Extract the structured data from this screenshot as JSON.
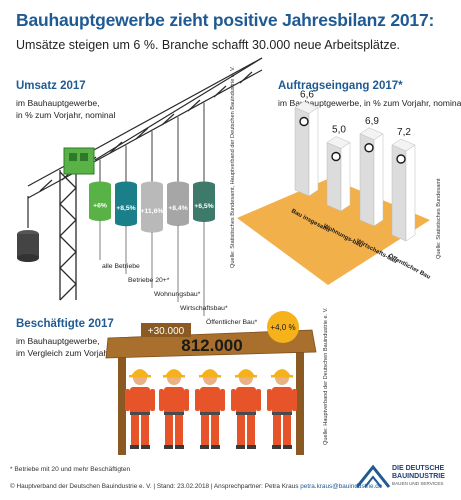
{
  "title": "Bauhauptgewerbe zieht positive Jahresbilanz 2017:",
  "subtitle": "Umsätze steigen um 6 %. Branche schafft 30.000 neue Arbeitsplätze.",
  "umsatz": {
    "heading": "Umsatz 2017",
    "sub1": "im Bauhauptgewerbe,",
    "sub2": "in % zum Vorjahr, nominal",
    "source": "Quelle: Statistisches Bundesamt, Hauptverband der Deutschen Bauindustrie e. V."
  },
  "auftrag": {
    "heading": "Auftragseingang 2017*",
    "sub": "im Bauhauptgewerbe, in % zum Vorjahr, nominal",
    "source": "Quelle: Statistisches Bundesamt"
  },
  "beschaeftigte": {
    "heading": "Beschäftigte 2017",
    "sub1": "im Bauhauptgewerbe,",
    "sub2": "im Vergleich zum Vorjahr",
    "total": "812.000",
    "change_abs": "+30.000",
    "change_pct": "+4,0 %",
    "source": "Quelle: Hauptverband der Deutschen Bauindustrie e. V."
  },
  "footnote": "* Betriebe mit 20 und mehr Beschäftigten",
  "footer": {
    "text": "© Hauptverband der Deutschen Bauindustrie e. V. | Stand: 23.02.2018 | Ansprechpartner: Petra Kraus",
    "email": "petra.kraus@bauindustrie.de"
  },
  "logo": {
    "line1": "DIE DEUTSCHE",
    "line2": "BAUINDUSTRIE",
    "line3": "BAUEN UND SERVICES"
  },
  "colors": {
    "brand_blue": "#1f5a93",
    "crane_green": "#58b246",
    "beam_brown": "#a8702c",
    "pillar_orange": "#f2b04b",
    "worker_orange": "#e8542a",
    "helmet_yellow": "#f6b21a"
  },
  "chart_data": [
    {
      "type": "bar",
      "title": "Umsatz 2017",
      "categories": [
        "alle Betriebe",
        "Betriebe 20+*",
        "Wohnungsbau*",
        "Wirtschaftsbau*",
        "Öffentlicher Bau*"
      ],
      "values": [
        6.0,
        8.5,
        11.6,
        8.4,
        6.5
      ],
      "labels": [
        "+6%",
        "+8,5%",
        "+11,6%",
        "+8,4%",
        "+6,5%"
      ],
      "colors": [
        "#58b246",
        "#1b7f8a",
        "#b9b9b9",
        "#a6a6a6",
        "#3d7a6a"
      ],
      "unit": "% zum Vorjahr"
    },
    {
      "type": "bar",
      "title": "Auftragseingang 2017*",
      "categories": [
        "Bau insgesamt",
        "Wohnungs-bau",
        "Wirtschafts-bau",
        "Öffentlicher Bau"
      ],
      "values": [
        6.6,
        5.0,
        6.9,
        7.2
      ],
      "labels": [
        "6,6",
        "5,0",
        "6,9",
        "7,2"
      ],
      "unit": "% zum Vorjahr"
    }
  ]
}
